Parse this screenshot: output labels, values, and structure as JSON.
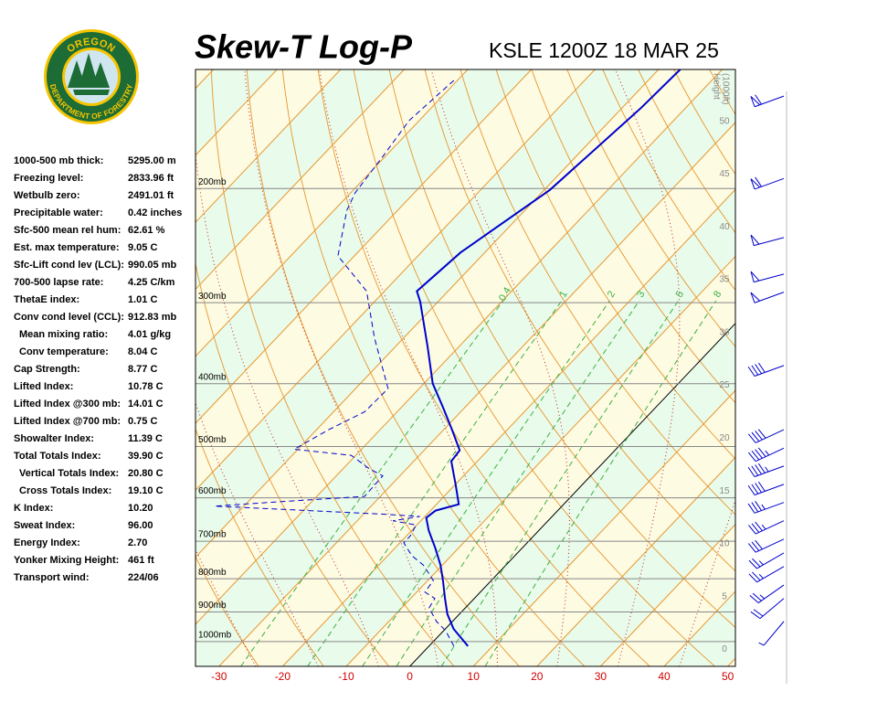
{
  "logo": {
    "top": "OREGON",
    "bottom": "DEPARTMENT OF FORESTRY"
  },
  "indices": [
    {
      "label": "1000-500 mb thick:",
      "value": "5295.00 m"
    },
    {
      "label": "Freezing level:",
      "value": "2833.96 ft"
    },
    {
      "label": "Wetbulb zero:",
      "value": "2491.01 ft"
    },
    {
      "label": "Precipitable water:",
      "value": "0.42 inches"
    },
    {
      "label": "Sfc-500 mean rel hum:",
      "value": "62.61 %"
    },
    {
      "label": "Est. max temperature:",
      "value": "9.05 C"
    },
    {
      "label": "Sfc-Lift cond lev (LCL):",
      "value": "990.05 mb"
    },
    {
      "label": "700-500 lapse rate:",
      "value": "4.25 C/km"
    },
    {
      "label": "ThetaE index:",
      "value": "1.01 C"
    },
    {
      "label": "Conv cond level (CCL):",
      "value": "912.83 mb"
    },
    {
      "label": "Mean mixing ratio:",
      "value": "4.01 g/kg"
    },
    {
      "label": "Conv temperature:",
      "value": "8.04 C"
    },
    {
      "label": "Cap Strength:",
      "value": "8.77 C"
    },
    {
      "label": "Lifted Index:",
      "value": "10.78 C"
    },
    {
      "label": "Lifted Index @300 mb:",
      "value": "14.01 C"
    },
    {
      "label": "Lifted Index @700 mb:",
      "value": "0.75 C"
    },
    {
      "label": "Showalter Index:",
      "value": "11.39 C"
    },
    {
      "label": "Total Totals Index:",
      "value": "39.90 C"
    },
    {
      "label": "Vertical Totals Index:",
      "value": "20.80 C"
    },
    {
      "label": "Cross Totals Index:",
      "value": "19.10 C"
    },
    {
      "label": "K Index:",
      "value": "10.20"
    },
    {
      "label": "Sweat Index:",
      "value": "96.00"
    },
    {
      "label": "Energy Index:",
      "value": "2.70"
    },
    {
      "label": "Yonker Mixing Height:",
      "value": "461 ft"
    },
    {
      "label": "Transport wind:",
      "value": "224/06"
    }
  ],
  "chart_data": {
    "type": "skewt",
    "title": "Skew-T Log-P",
    "subtitle": "KSLE 1200Z 18 MAR 25",
    "y2_label": [
      "Height",
      "(1000ft)"
    ],
    "xlim": [
      -33.7,
      51.2
    ],
    "xticks": [
      -30,
      -20,
      -10,
      0,
      10,
      20,
      30,
      40,
      50
    ],
    "ylim": [
      1092,
      131
    ],
    "yticks": [
      {
        "value": 1000,
        "label": "1000mb"
      },
      {
        "value": 900,
        "label": "900mb"
      },
      {
        "value": 800,
        "label": "800mb"
      },
      {
        "value": 700,
        "label": "700mb"
      },
      {
        "value": 600,
        "label": "600mb"
      },
      {
        "value": 500,
        "label": "500mb"
      },
      {
        "value": 400,
        "label": "400mb"
      },
      {
        "value": 300,
        "label": "300mb"
      },
      {
        "value": 200,
        "label": "200mb"
      }
    ],
    "y2lim": [
      -1.6,
      54.9
    ],
    "y2ticks": [
      0,
      5,
      10,
      15,
      20,
      25,
      30,
      35,
      40,
      45,
      50
    ],
    "mixing_ratios": [
      0.4,
      1,
      2,
      3,
      5,
      8
    ],
    "series": [
      {
        "color": "#0000cc",
        "style": "solid",
        "pressure": [
          1016,
          956,
          907,
          858,
          805,
          762,
          718,
          674,
          644,
          628,
          614,
          574,
          527,
          507,
          471,
          434,
          400,
          351,
          299,
          288,
          251,
          201,
          150,
          131
        ],
        "temperature": [
          6.1,
          1.3,
          -1.9,
          -4.6,
          -7.6,
          -10.3,
          -13.6,
          -17.3,
          -19.6,
          -19.2,
          -16.5,
          -19.8,
          -24.1,
          -24.4,
          -28.7,
          -33.6,
          -38.6,
          -44.9,
          -52.8,
          -54.9,
          -53.8,
          -49.1,
          -47.0,
          -46.6
        ]
      },
      {
        "color": "#0000cc",
        "style": "dashed",
        "pressure": [
          1016,
          962,
          931,
          887,
          858,
          839,
          805,
          762,
          737,
          704,
          687,
          661,
          651,
          641,
          636,
          618,
          608,
          597,
          555,
          541,
          516,
          505,
          471,
          442,
          407,
          340,
          288,
          254,
          216,
          203,
          178,
          157,
          135
        ],
        "temperature": [
          3.9,
          0.3,
          -2.5,
          -5.7,
          -6.2,
          -8.7,
          -9.1,
          -13.0,
          -16.2,
          -19.4,
          -19.4,
          -20.1,
          -24.4,
          -20.8,
          -26.9,
          -54.6,
          -44.7,
          -32.5,
          -32.7,
          -35.9,
          -40.7,
          -50.6,
          -48.1,
          -45.1,
          -44.9,
          -54.6,
          -62.8,
          -72.6,
          -78.0,
          -79.3,
          -80.4,
          -81.6,
          -80.5
        ]
      }
    ],
    "winds": {
      "pressure": [
        144,
        193,
        238,
        271,
        289,
        375,
        471,
        503,
        536,
        572,
        610,
        651,
        695,
        730,
        766,
        818,
        858,
        931
      ],
      "direction": [
        250,
        250,
        255,
        255,
        250,
        250,
        245,
        245,
        250,
        250,
        250,
        245,
        245,
        240,
        240,
        235,
        230,
        220
      ],
      "speed": [
        60,
        60,
        50,
        50,
        50,
        40,
        40,
        45,
        45,
        40,
        35,
        35,
        30,
        25,
        25,
        25,
        20,
        5
      ]
    }
  }
}
